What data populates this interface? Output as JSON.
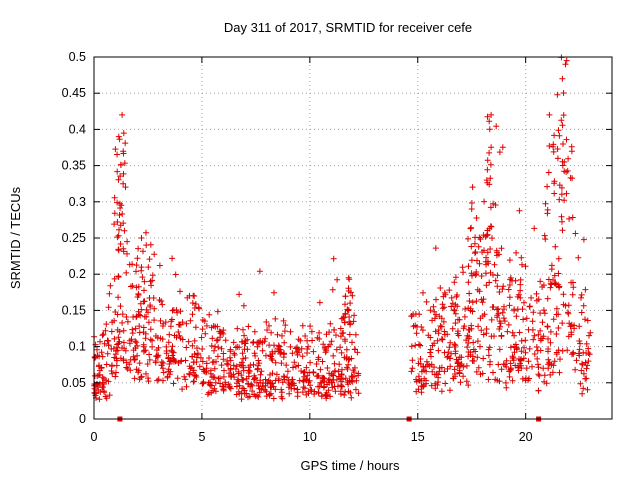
{
  "chart_data": {
    "type": "scatter",
    "title": "Day 311 of 2017, SRMTID for receiver cefe",
    "xlabel": "GPS time / hours",
    "ylabel": "SRMTID / TECUs",
    "xlim": [
      0,
      24
    ],
    "ylim": [
      0,
      0.5
    ],
    "x_ticks": [
      0,
      5,
      10,
      15,
      20
    ],
    "x_tick_labels": [
      "0",
      "5",
      "10",
      "15",
      "20"
    ],
    "y_ticks": [
      0,
      0.05,
      0.1,
      0.15,
      0.2,
      0.25,
      0.3,
      0.35,
      0.4,
      0.45,
      0.5
    ],
    "y_tick_labels": [
      "0",
      "0.05",
      "0.1",
      "0.15",
      "0.2",
      "0.25",
      "0.3",
      "0.35",
      "0.4",
      "0.45",
      "0.5"
    ],
    "grid": true,
    "marker": "+",
    "color": "#e00000",
    "series": [
      {
        "name": "SRMTID",
        "envelope_hours": [
          0.0,
          0.5,
          1.0,
          1.25,
          1.5,
          2.0,
          3.0,
          4.0,
          5.0,
          7.0,
          9.0,
          10.5,
          11.5,
          12.3,
          14.8,
          15.5,
          16.5,
          17.5,
          18.0,
          18.5,
          19.0,
          20.0,
          21.0,
          21.5,
          22.0,
          22.5,
          23.0
        ],
        "envelope_typical_tecu": [
          0.06,
          0.07,
          0.12,
          0.2,
          0.12,
          0.13,
          0.12,
          0.11,
          0.08,
          0.07,
          0.07,
          0.07,
          0.08,
          0.08,
          0.08,
          0.09,
          0.11,
          0.13,
          0.16,
          0.15,
          0.12,
          0.11,
          0.1,
          0.15,
          0.2,
          0.1,
          0.07
        ],
        "peaks": [
          {
            "x": 1.15,
            "y": 0.39
          },
          {
            "x": 1.3,
            "y": 0.42
          },
          {
            "x": 2.2,
            "y": 0.25
          },
          {
            "x": 11.8,
            "y": 0.195
          },
          {
            "x": 17.5,
            "y": 0.29
          },
          {
            "x": 18.2,
            "y": 0.33
          },
          {
            "x": 18.4,
            "y": 0.42
          },
          {
            "x": 21.1,
            "y": 0.42
          },
          {
            "x": 21.7,
            "y": 0.47
          },
          {
            "x": 21.9,
            "y": 0.495
          }
        ],
        "gap_hours": [
          12.3,
          14.7
        ],
        "ground_markers": [
          {
            "x": 1.2,
            "y": 0
          },
          {
            "x": 14.6,
            "y": 0
          },
          {
            "x": 20.6,
            "y": 0
          }
        ]
      }
    ]
  }
}
